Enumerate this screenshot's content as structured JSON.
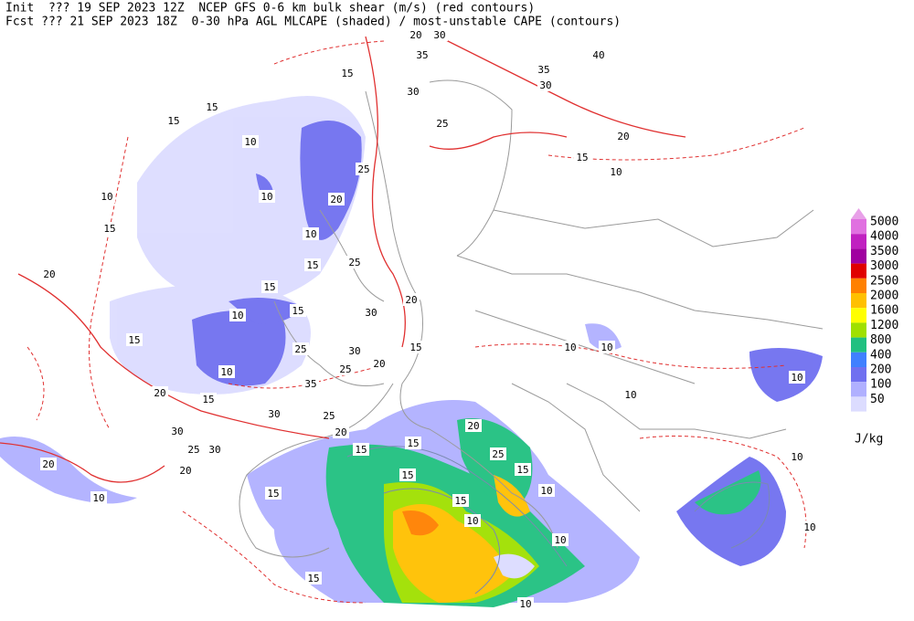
{
  "header": {
    "line1": "Init  ??? 19 SEP 2023 12Z  NCEP GFS 0-6 km bulk shear (m/s) (red contours)",
    "line2": "Fcst ??? 21 SEP 2023 18Z  0-30 hPa AGL MLCAPE (shaded) / most-unstable CAPE (contours)"
  },
  "legend": {
    "arrow_color": "#e8a0e8",
    "items": [
      {
        "value": 5000,
        "color": "#e070e0"
      },
      {
        "value": 4000,
        "color": "#c020c0"
      },
      {
        "value": 3500,
        "color": "#a000a0"
      },
      {
        "value": 3000,
        "color": "#e00000"
      },
      {
        "value": 2500,
        "color": "#ff8000"
      },
      {
        "value": 2000,
        "color": "#ffc000"
      },
      {
        "value": 1600,
        "color": "#ffff00"
      },
      {
        "value": 1200,
        "color": "#a0e000"
      },
      {
        "value": 800,
        "color": "#20c080"
      },
      {
        "value": 400,
        "color": "#4080ff"
      },
      {
        "value": 200,
        "color": "#7070f0"
      },
      {
        "value": 100,
        "color": "#b0b0ff"
      },
      {
        "value": 50,
        "color": "#dcdcff"
      }
    ],
    "unit": "J/kg"
  },
  "map": {
    "contour_labels": [
      20,
      30,
      35,
      15,
      30,
      35,
      30,
      40,
      25,
      15,
      15,
      10,
      20,
      15,
      10,
      25,
      20,
      10,
      15,
      10,
      10,
      15,
      25,
      20,
      15,
      10,
      15,
      30,
      20,
      15,
      10,
      25,
      30,
      20,
      25,
      15,
      35,
      30,
      20,
      15,
      30,
      25,
      20,
      15,
      15,
      20,
      25,
      15,
      15,
      15,
      10,
      10,
      15,
      25,
      30,
      20,
      20,
      10,
      10,
      10,
      10,
      10,
      10,
      10,
      10,
      10,
      15
    ]
  }
}
